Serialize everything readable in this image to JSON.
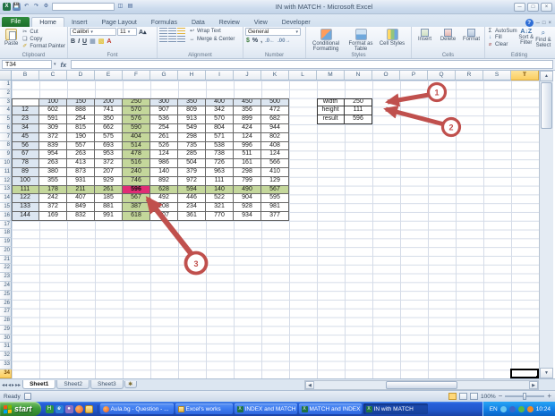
{
  "window": {
    "title": "IN with MATCH  -  Microsoft Excel",
    "time": "10:24",
    "language": "EN"
  },
  "icons": {
    "cut": "✂",
    "copy": "❏",
    "painter": "✐",
    "undo": "↶",
    "redo": "↷",
    "wrap": "↩",
    "merge": "↔",
    "sigma": "Σ",
    "fill": "↓",
    "clear": "⌀",
    "sort": "A↓Z",
    "find": "⌕",
    "dollar": "$",
    "percent": "%",
    "comma": ",",
    "bold": "B",
    "italic": "I",
    "underline": "U",
    "grow": "A▴",
    "shrink": "A▾",
    "left_nav": "◂",
    "right_nav": "▸",
    "first_nav": "◂◂",
    "last_nav": "▸▸",
    "up": "▴",
    "down": "▾",
    "left": "◂",
    "right": "▸",
    "min": "─",
    "max": "□",
    "close": "×",
    "help": "?",
    "collapse": "⌄",
    "minus": "−",
    "plus": "+"
  },
  "ribbon": {
    "tabs": [
      "File",
      "Home",
      "Insert",
      "Page Layout",
      "Formulas",
      "Data",
      "Review",
      "View",
      "Developer"
    ],
    "active_tab": "Home",
    "clipboard": {
      "label": "Clipboard",
      "paste": "Paste",
      "cut": "Cut",
      "copy": "Copy",
      "painter": "Format Painter"
    },
    "font": {
      "label": "Font",
      "font_name": "Calibri",
      "font_size": "11"
    },
    "alignment": {
      "label": "Alignment",
      "wrap": "Wrap Text",
      "merge": "Merge & Center"
    },
    "number": {
      "label": "Number",
      "format": "General"
    },
    "styles": {
      "label": "Styles",
      "conditional": "Conditional Formatting",
      "format_table": "Format as Table",
      "cell_styles": "Cell Styles"
    },
    "cells": {
      "label": "Cells",
      "insert": "Insert",
      "delete": "Delete",
      "format": "Format"
    },
    "editing": {
      "label": "Editing",
      "autosum": "AutoSum",
      "fill": "Fill",
      "clear": "Clear",
      "sort": "Sort & Filter",
      "find": "Find & Select"
    }
  },
  "formula_bar": {
    "name_box": "T34",
    "fx": "fx",
    "formula": ""
  },
  "sheet": {
    "columns": [
      "B",
      "C",
      "D",
      "E",
      "F",
      "G",
      "H",
      "I",
      "J",
      "K",
      "L",
      "M",
      "N",
      "O",
      "P",
      "Q",
      "R",
      "S",
      "T"
    ],
    "rows": 34,
    "selected_column": "T",
    "selected_row": 34,
    "table": {
      "col_headers": [
        "100",
        "150",
        "200",
        "250",
        "300",
        "350",
        "400",
        "450",
        "500"
      ],
      "row_labels": [
        "12",
        "23",
        "34",
        "45",
        "56",
        "67",
        "78",
        "89",
        "100",
        "111",
        "122",
        "133",
        "144"
      ],
      "data": [
        [
          602,
          888,
          741,
          570,
          907,
          809,
          342,
          356,
          472
        ],
        [
          591,
          254,
          350,
          576,
          536,
          913,
          570,
          899,
          682
        ],
        [
          309,
          815,
          662,
          590,
          254,
          549,
          804,
          424,
          944
        ],
        [
          372,
          190,
          575,
          404,
          261,
          298,
          571,
          124,
          802
        ],
        [
          839,
          557,
          693,
          514,
          526,
          735,
          538,
          996,
          408
        ],
        [
          954,
          263,
          953,
          478,
          124,
          285,
          738,
          511,
          124
        ],
        [
          263,
          413,
          372,
          516,
          986,
          504,
          726,
          161,
          566
        ],
        [
          380,
          873,
          207,
          240,
          140,
          379,
          963,
          298,
          410
        ],
        [
          355,
          931,
          929,
          746,
          892,
          972,
          111,
          799,
          129
        ],
        [
          178,
          211,
          261,
          596,
          628,
          594,
          140,
          490,
          567
        ],
        [
          242,
          407,
          185,
          567,
          492,
          446,
          522,
          904,
          595
        ],
        [
          372,
          849,
          881,
          387,
          208,
          234,
          321,
          928,
          981
        ],
        [
          169,
          832,
          991,
          618,
          707,
          361,
          770,
          934,
          377
        ]
      ],
      "highlighted_column_header": "250",
      "highlighted_row_label": "111",
      "intersection_value": "596"
    },
    "lookup": {
      "rows": [
        {
          "label": "width",
          "value": "250"
        },
        {
          "label": "height",
          "value": "111"
        },
        {
          "label": "result",
          "value": "596"
        }
      ]
    }
  },
  "annotations": {
    "markers": [
      "1",
      "2",
      "3"
    ]
  },
  "colors": {
    "green": "#c4d79b",
    "pink": "#e02c74",
    "header_fill": "#dce6f1",
    "arrow": "#c0504d",
    "selected_header": "#fbce5f"
  },
  "sheet_tabs": {
    "tabs": [
      "Sheet1",
      "Sheet2",
      "Sheet3"
    ],
    "active": "Sheet1"
  },
  "status_bar": {
    "ready": "Ready",
    "zoom": "100%"
  },
  "taskbar": {
    "start": "start",
    "buttons": [
      {
        "label": "Aula.bg - Question - ...",
        "icon": "firefox"
      },
      {
        "label": "Excel's works",
        "icon": "folder"
      },
      {
        "label": "INDEX and MATCH",
        "icon": "excel"
      },
      {
        "label": "MATCH and INDEX",
        "icon": "excel"
      },
      {
        "label": "IN with MATCH",
        "icon": "excel",
        "active": true
      }
    ]
  }
}
